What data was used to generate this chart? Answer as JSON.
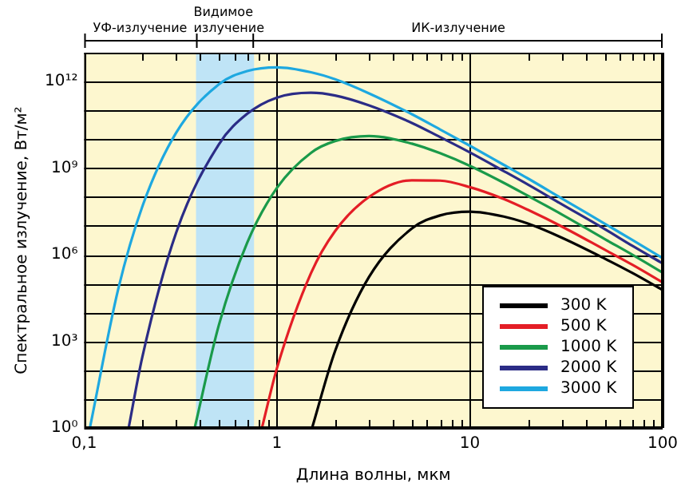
{
  "chart_data": {
    "type": "line",
    "xlabel": "Длина волны, мкм",
    "ylabel": "Спектральное излучение, Вт/м²",
    "log": "xy",
    "grid": true,
    "legend": "bottom right",
    "marker": "none",
    "line_style": "solid",
    "xlim": [
      0.1,
      100
    ],
    "xticks": [
      {
        "value": 0.1,
        "label": "0,1"
      },
      {
        "value": 0.2,
        "label": null
      },
      {
        "value": 0.3,
        "label": null
      },
      {
        "value": 0.4,
        "label": null
      },
      {
        "value": 0.5,
        "label": null
      },
      {
        "value": 0.6,
        "label": null
      },
      {
        "value": 0.7,
        "label": null
      },
      {
        "value": 0.8,
        "label": null
      },
      {
        "value": 0.9,
        "label": null
      },
      1,
      {
        "value": 2,
        "label": null
      },
      {
        "value": 3,
        "label": null
      },
      {
        "value": 4,
        "label": null
      },
      {
        "value": 5,
        "label": null
      },
      {
        "value": 6,
        "label": null
      },
      {
        "value": 7,
        "label": null
      },
      {
        "value": 8,
        "label": null
      },
      {
        "value": 9,
        "label": null
      },
      10,
      {
        "value": 20,
        "label": null
      },
      {
        "value": 30,
        "label": null
      },
      {
        "value": 40,
        "label": null
      },
      {
        "value": 50,
        "label": null
      },
      {
        "value": 60,
        "label": null
      },
      {
        "value": 70,
        "label": null
      },
      {
        "value": 80,
        "label": null
      },
      {
        "value": 90,
        "label": null
      },
      100
    ],
    "ylim": [
      1,
      10000000000000.0
    ],
    "yticks": [
      {
        "value": 1,
        "label": "10⁰"
      },
      {
        "value": 10,
        "label": null
      },
      {
        "value": 100,
        "label": null
      },
      {
        "value": 1000,
        "label": "10³"
      },
      {
        "value": 10000.0,
        "label": null
      },
      {
        "value": 100000.0,
        "label": null
      },
      {
        "value": 1000000.0,
        "label": "10⁶"
      },
      {
        "value": 10000000.0,
        "label": null
      },
      {
        "value": 100000000.0,
        "label": null
      },
      {
        "value": 1000000000.0,
        "label": "10⁹"
      },
      {
        "value": 10000000000.0,
        "label": null
      },
      {
        "value": 100000000000.0,
        "label": null
      },
      {
        "value": 1000000000000.0,
        "label": "10¹²"
      },
      {
        "value": 10000000000000.0,
        "label": null
      }
    ],
    "bands": [
      {
        "axis": "x",
        "from": 0.38,
        "to": 0.76,
        "label": "Видимое излучение",
        "color": "#bfe4f6"
      }
    ],
    "annotations": [
      "УФ-излучение",
      "ИК-излучение"
    ],
    "series": [
      {
        "name": "300 K",
        "color": "#000000",
        "x": [
          1.52,
          2,
          3,
          5,
          7,
          10,
          15,
          20,
          30,
          50,
          70,
          100
        ],
        "values": [
          1,
          460,
          170000.0,
          8100000.0,
          23000000.0,
          31000000.0,
          21000000.0,
          12000000.0,
          3900000.0,
          740000.0,
          230000.0,
          60000.0
        ]
      },
      {
        "name": "500 K",
        "color": "#e41e26",
        "x": [
          0.835,
          1,
          1.5,
          2,
          3,
          5,
          7,
          10,
          15,
          20,
          30,
          50,
          70,
          100
        ],
        "values": [
          1,
          120,
          230000.0,
          6600000.0,
          100000000.0,
          380000000.0,
          370000000.0,
          220000000.0,
          85000000.0,
          36000000.0,
          9500000.0,
          1500000.0,
          440000.0,
          110000.0
        ]
      },
      {
        "name": "1000 K",
        "color": "#1a9a4a",
        "x": [
          0.374,
          0.5,
          0.7,
          1,
          1.5,
          2,
          3,
          5,
          7,
          10,
          15,
          20,
          30,
          50,
          70,
          100
        ],
        "values": [
          1,
          3800,
          2600000.0,
          210000000.0,
          3400000000.0,
          8700000000.0,
          13000000000.0,
          7100000000.0,
          3300000000.0,
          1200000000.0,
          310000000.0,
          110000000.0,
          25000000.0,
          3500000.0,
          980000.0,
          240000.0
        ]
      },
      {
        "name": "2000 K",
        "color": "#2b2c86",
        "x": [
          0.17,
          0.2,
          0.3,
          0.5,
          0.7,
          1,
          1.5,
          2,
          3,
          5,
          7,
          10,
          15,
          20,
          30,
          50,
          70,
          100
        ],
        "values": [
          1,
          280,
          5900000.0,
          6800000000.0,
          76000000000.0,
          280000000000.0,
          410000000000.0,
          330000000000.0,
          150000000000.0,
          37000000000.0,
          12000000000.0,
          3500000000.0,
          790000000.0,
          270000000.0,
          56000000.0,
          7800000.0,
          2000000.0,
          500000.0
        ]
      },
      {
        "name": "3000 K",
        "color": "#1ea8e0",
        "x": [
          0.107,
          0.15,
          0.2,
          0.3,
          0.5,
          0.7,
          1,
          1.5,
          2,
          3,
          5,
          7,
          10,
          15,
          20,
          30,
          50,
          70,
          100
        ],
        "values": [
          1,
          63000.0,
          46000000.0,
          17000000000.0,
          810000000000.0,
          2300000000000.0,
          3100000000000.0,
          2100000000000.0,
          1200000000000.0,
          390000000000.0,
          74000000000.0,
          22000000000.0,
          6000000000.0,
          1300000000.0,
          440000000.0,
          89000000.0,
          12000000.0,
          3200000.0,
          760000.0
        ]
      }
    ]
  }
}
